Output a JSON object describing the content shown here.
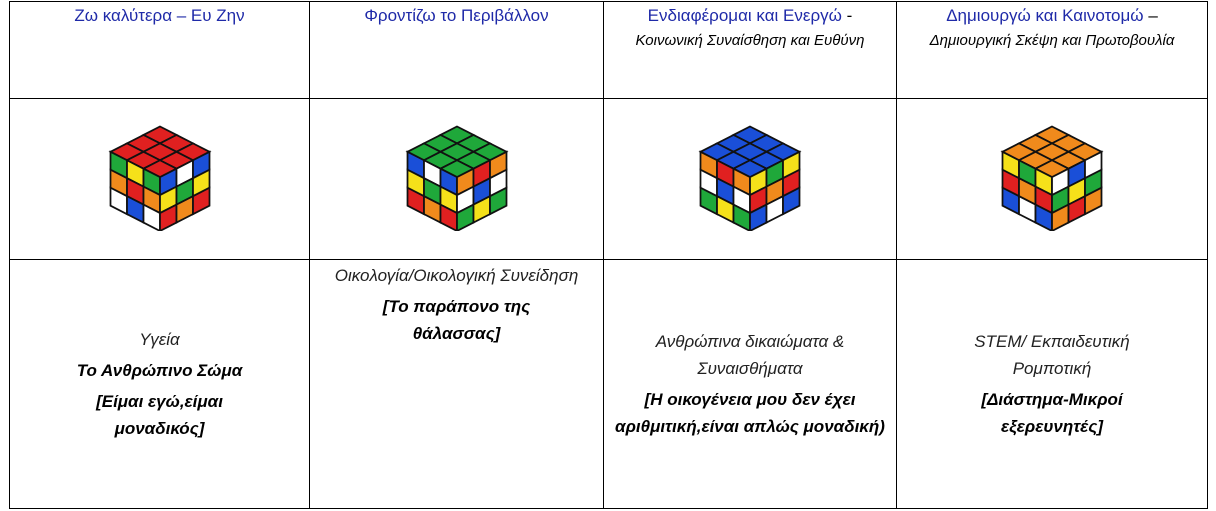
{
  "table": {
    "header": [
      {
        "title": "Ζω καλύτερα – Ευ Ζην"
      },
      {
        "title": "Φροντίζω το Περιβάλλον"
      },
      {
        "title": "Ενδιαφέρομαι και Ενεργώ",
        "separator": "-",
        "subtitle": "Κοινωνική Συναίσθηση και Ευθύνη"
      },
      {
        "title": "Δημιουργώ και Καινοτομώ",
        "separator": "–",
        "subtitle": "Δημιουργική Σκέψη και Πρωτοβουλία"
      }
    ],
    "cells": [
      {
        "topic": "Υγεία",
        "theme": "Το Ανθρώπινο Σώμα",
        "project": "[Είμαι εγώ,είμαι μοναδικός]"
      },
      {
        "topic": "Οικολογία/Οικολογική Συνείδηση",
        "project": "[Το παράπονο της θάλασσας]"
      },
      {
        "topic": "Ανθρώπινα δικαιώματα & Συναισθήματα",
        "project": "[Η οικογένεια μου δεν έχει αριθμιτική,είναι απλώς μοναδική)"
      },
      {
        "topic": "STEM/ Εκπαιδευτική Ρομποτική",
        "project": "[Διάστημα-Μικροί εξερευνητές]"
      }
    ]
  }
}
